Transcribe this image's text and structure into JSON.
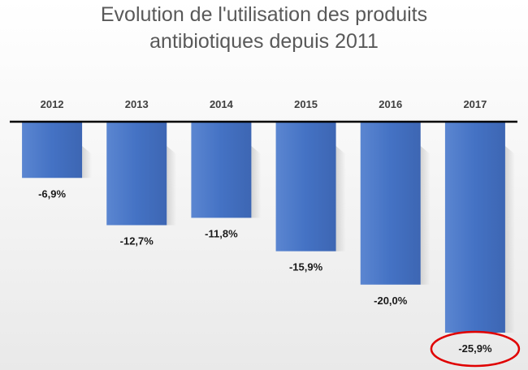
{
  "chart_data": {
    "type": "bar",
    "title_lines": [
      "Evolution de l'utilisation des produits",
      "antibiotiques depuis 2011"
    ],
    "categories": [
      "2012",
      "2013",
      "2014",
      "2015",
      "2016",
      "2017"
    ],
    "values": [
      -6.9,
      -12.7,
      -11.8,
      -15.9,
      -20.0,
      -25.9
    ],
    "data_labels": [
      "-6,9%",
      "-12,7%",
      "-11,8%",
      "-15,9%",
      "-20,0%",
      "-25,9%"
    ],
    "xlabel": "",
    "ylabel": "",
    "ylim": [
      -25.9,
      0
    ],
    "grid": false,
    "legend": "none",
    "highlighted_category": "2017",
    "colors": {
      "bar": "#4472c4",
      "bar_dark": "#2f5597",
      "axis": "#000000",
      "highlight_ellipse": "#e00000",
      "title": "#595959"
    }
  }
}
